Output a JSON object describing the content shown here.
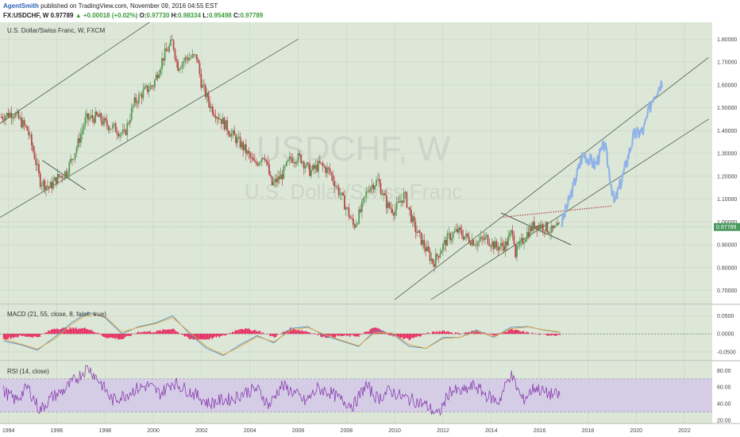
{
  "header": {
    "author": "AgentSmith",
    "published": "published on TradingView.com, November 09, 2016 04:55 EST",
    "symbol": "FX:USDCHF, W",
    "price": "0.97789",
    "change": "+0.00018 (+0.02%)",
    "open_label": "O:",
    "open": "0.97730",
    "high_label": "H:",
    "high": "0.98334",
    "low_label": "L:",
    "low": "0.95498",
    "close_label": "C:",
    "close": "0.97789"
  },
  "colors": {
    "pane_bg": "#dde7d8",
    "grid": "#c8d4c3",
    "up_candle": "#5a9a57",
    "down_candle": "#b34a4a",
    "projection": "#8fb3e6",
    "macd_line": "#4a90c8",
    "signal_line": "#e8a33c",
    "histogram": "#e8245c",
    "rsi_line": "#8a3fb0",
    "rsi_band": "#d5cde6",
    "price_tag": "#4a9a5f"
  },
  "watermark": {
    "symbol": "USDCHF, W",
    "name": "U.S. Dollar/Swiss Franc"
  },
  "chart_data": [
    {
      "type": "candlestick",
      "title": "U.S. Dollar/Swiss Franc, W, FXCM",
      "x": [
        1993.7,
        1994.2,
        1994.8,
        1995.1,
        1995.3,
        1995.7,
        1996.0,
        1996.4,
        1996.8,
        1997.2,
        1997.7,
        1998.0,
        1998.4,
        1998.8,
        1999.2,
        1999.6,
        2000.0,
        2000.4,
        2000.8,
        2001.0,
        2001.4,
        2001.8,
        2002.0,
        2002.4,
        2002.8,
        2003.2,
        2003.7,
        2004.2,
        2004.6,
        2004.9,
        2005.3,
        2005.7,
        2006.1,
        2006.5,
        2006.9,
        2007.3,
        2007.7,
        2008.0,
        2008.3,
        2008.6,
        2008.9,
        2009.3,
        2009.7,
        2010.0,
        2010.4,
        2010.8,
        2011.2,
        2011.6,
        2011.8,
        2012.2,
        2012.6,
        2013.0,
        2013.4,
        2013.8,
        2014.2,
        2014.6,
        2014.9,
        2015.0,
        2015.4,
        2015.8,
        2016.2,
        2016.5,
        2016.85
      ],
      "close": [
        1.46,
        1.48,
        1.4,
        1.28,
        1.18,
        1.15,
        1.19,
        1.22,
        1.32,
        1.45,
        1.46,
        1.43,
        1.41,
        1.38,
        1.52,
        1.57,
        1.6,
        1.72,
        1.79,
        1.68,
        1.72,
        1.72,
        1.6,
        1.5,
        1.45,
        1.39,
        1.33,
        1.25,
        1.3,
        1.16,
        1.2,
        1.28,
        1.28,
        1.22,
        1.25,
        1.22,
        1.13,
        1.06,
        0.98,
        1.05,
        1.15,
        1.18,
        1.07,
        1.05,
        1.12,
        0.98,
        0.9,
        0.82,
        0.86,
        0.93,
        0.96,
        0.93,
        0.91,
        0.93,
        0.89,
        0.9,
        0.97,
        0.86,
        0.94,
        0.99,
        0.98,
        0.96,
        0.97789
      ],
      "projection": {
        "x": [
          2016.9,
          2017.3,
          2017.8,
          2018.3,
          2018.7,
          2019.1,
          2019.5,
          2019.9,
          2020.3,
          2020.7,
          2021.1
        ],
        "y": [
          0.99,
          1.12,
          1.3,
          1.25,
          1.34,
          1.08,
          1.22,
          1.38,
          1.4,
          1.55,
          1.62
        ]
      },
      "channels": [
        {
          "x": [
            1993.5,
            2003.7
          ],
          "y": [
            1.42,
            2.15
          ]
        },
        {
          "x": [
            1993.5,
            2006.0
          ],
          "y": [
            1.01,
            1.8
          ]
        },
        {
          "x": [
            2010.0,
            2023.0
          ],
          "y": [
            0.66,
            1.72
          ]
        },
        {
          "x": [
            2011.5,
            2023.0
          ],
          "y": [
            0.66,
            1.45
          ]
        }
      ],
      "trendlines": [
        {
          "x": [
            1995.4,
            1997.2
          ],
          "y": [
            1.27,
            1.14
          ],
          "style": "solid"
        },
        {
          "x": [
            2014.4,
            2017.3
          ],
          "y": [
            1.04,
            0.9
          ],
          "style": "solid"
        },
        {
          "x": [
            2014.4,
            2019.0
          ],
          "y": [
            1.02,
            1.07
          ],
          "style": "dotted"
        }
      ],
      "ylim": [
        0.65,
        1.86
      ],
      "yticks": [
        "1.80000",
        "1.70000",
        "1.60000",
        "1.50000",
        "1.40000",
        "1.30000",
        "1.20000",
        "1.10000",
        "1.00000",
        "0.90000",
        "0.80000",
        "0.70000"
      ],
      "ytick_values": [
        1.8,
        1.7,
        1.6,
        1.5,
        1.4,
        1.3,
        1.2,
        1.1,
        1.0,
        0.9,
        0.8,
        0.7
      ],
      "last_price": 0.97789,
      "last_price_label": "0.97789"
    },
    {
      "type": "line",
      "title": "MACD (21, 55, close, 8, false, true)",
      "x": [
        1993.8,
        1994.5,
        1995.2,
        1995.9,
        1996.6,
        1997.3,
        1998.0,
        1998.7,
        1999.4,
        2000.1,
        2000.8,
        2001.5,
        2002.2,
        2002.9,
        2003.6,
        2004.3,
        2005.0,
        2005.7,
        2006.4,
        2007.1,
        2007.8,
        2008.5,
        2009.2,
        2009.9,
        2010.6,
        2011.3,
        2012.0,
        2012.7,
        2013.4,
        2014.1,
        2014.8,
        2015.5,
        2016.2,
        2016.85
      ],
      "series": [
        {
          "role": "macd",
          "values": [
            -0.02,
            -0.03,
            -0.045,
            -0.01,
            0.03,
            0.06,
            0.045,
            0.0,
            0.02,
            0.03,
            0.05,
            0.0,
            -0.04,
            -0.06,
            -0.03,
            -0.005,
            -0.025,
            0.015,
            0.02,
            -0.005,
            -0.02,
            -0.035,
            0.01,
            0.0,
            -0.035,
            -0.04,
            -0.01,
            -0.01,
            0.01,
            -0.01,
            0.018,
            0.02,
            0.01,
            0.004
          ]
        },
        {
          "role": "signal",
          "values": [
            -0.015,
            -0.028,
            -0.042,
            -0.015,
            0.025,
            0.055,
            0.048,
            0.005,
            0.018,
            0.028,
            0.045,
            0.005,
            -0.035,
            -0.058,
            -0.035,
            -0.008,
            -0.022,
            0.01,
            0.018,
            -0.002,
            -0.018,
            -0.033,
            0.004,
            0.002,
            -0.03,
            -0.04,
            -0.013,
            -0.01,
            0.007,
            -0.008,
            0.014,
            0.019,
            0.011,
            0.005
          ]
        }
      ],
      "ylim": [
        -0.07,
        0.075
      ],
      "yticks": [
        "0.0500",
        "0.0000",
        "-0.0500"
      ],
      "ytick_values": [
        0.05,
        0.0,
        -0.05
      ]
    },
    {
      "type": "line",
      "title": "RSI (14, close)",
      "x": [
        1993.8,
        1994.3,
        1994.8,
        1995.3,
        1995.8,
        1996.3,
        1996.8,
        1997.3,
        1997.8,
        1998.3,
        1998.8,
        1999.3,
        1999.8,
        2000.3,
        2000.8,
        2001.3,
        2001.8,
        2002.3,
        2002.8,
        2003.3,
        2003.8,
        2004.3,
        2004.8,
        2005.3,
        2005.8,
        2006.3,
        2006.8,
        2007.3,
        2007.8,
        2008.3,
        2008.8,
        2009.3,
        2009.8,
        2010.3,
        2010.8,
        2011.3,
        2011.8,
        2012.3,
        2012.8,
        2013.3,
        2013.8,
        2014.3,
        2014.8,
        2015.3,
        2015.8,
        2016.3,
        2016.85
      ],
      "values": [
        55,
        44,
        60,
        32,
        48,
        56,
        70,
        84,
        66,
        44,
        50,
        58,
        62,
        52,
        66,
        58,
        50,
        40,
        44,
        46,
        54,
        58,
        38,
        62,
        54,
        42,
        58,
        54,
        44,
        38,
        62,
        46,
        56,
        48,
        44,
        38,
        26,
        56,
        54,
        62,
        50,
        42,
        76,
        44,
        60,
        52,
        50
      ],
      "ylim": [
        18,
        88
      ],
      "band": [
        30,
        70
      ],
      "yticks": [
        "80.00",
        "60.00",
        "40.00",
        "20.00"
      ],
      "ytick_values": [
        80,
        60,
        40,
        20
      ]
    }
  ],
  "xaxis": {
    "ticks": [
      "1994",
      "1996",
      "1998",
      "2000",
      "2002",
      "2004",
      "2006",
      "2008",
      "2010",
      "2012",
      "2014",
      "2016",
      "2018",
      "2020",
      "2022"
    ],
    "tick_values": [
      1994,
      1996,
      1998,
      2000,
      2002,
      2004,
      2006,
      2008,
      2010,
      2012,
      2014,
      2016,
      2018,
      2020,
      2022
    ],
    "range": [
      1993.65,
      2023.15
    ]
  }
}
